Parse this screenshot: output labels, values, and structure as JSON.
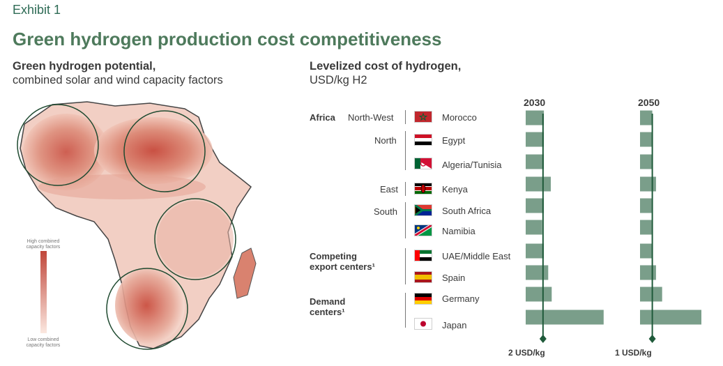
{
  "exhibit": "Exhibit 1",
  "title": "Green hydrogen production cost competitiveness",
  "left_panel": {
    "subtitle_bold": "Green hydrogen potential,",
    "subtitle": "combined solar and wind capacity factors",
    "legend_high": "High combined capacity factors",
    "legend_low": "Low combined capacity factors"
  },
  "right_panel": {
    "subtitle_bold": "Levelized cost of hydrogen,",
    "subtitle": "USD/kg H2"
  },
  "groups": {
    "africa": "Africa",
    "north_west": "North-West",
    "north": "North",
    "east": "East",
    "south": "South",
    "competing_line1": "Competing",
    "competing_line2": "export centers¹",
    "demand_line1": "Demand",
    "demand_line2": "centers¹"
  },
  "countries": [
    "Morocco",
    "Egypt",
    "Algeria/Tunisia",
    "Kenya",
    "South Africa",
    "Namibia",
    "UAE/Middle East",
    "Spain",
    "Germany",
    "Japan"
  ],
  "colors": {
    "bar": "#7a9e8a",
    "refline": "#1f5a3a",
    "title": "#4e7a5c"
  },
  "chart_data": [
    {
      "type": "bar",
      "orientation": "horizontal",
      "title": "2030",
      "reference_label": "2 USD/kg",
      "reference_value": 2,
      "xlim": [
        0,
        9.5
      ],
      "categories": [
        "Morocco",
        "Egypt",
        "Algeria/Tunisia",
        "Kenya",
        "South Africa",
        "Namibia",
        "UAE/Middle East",
        "Spain",
        "Germany",
        "Japan"
      ],
      "values": [
        2.1,
        2.1,
        2.1,
        2.9,
        2.1,
        1.9,
        2.1,
        2.6,
        3.0,
        9.0
      ]
    },
    {
      "type": "bar",
      "orientation": "horizontal",
      "title": "2050",
      "reference_label": "1 USD/kg",
      "reference_value": 1,
      "xlim": [
        0,
        5.0
      ],
      "categories": [
        "Morocco",
        "Egypt",
        "Algeria/Tunisia",
        "Kenya",
        "South Africa",
        "Namibia",
        "UAE/Middle East",
        "Spain",
        "Germany",
        "Japan"
      ],
      "values": [
        1.0,
        1.0,
        1.0,
        1.3,
        0.95,
        0.95,
        1.0,
        1.3,
        1.8,
        5.0
      ]
    }
  ]
}
